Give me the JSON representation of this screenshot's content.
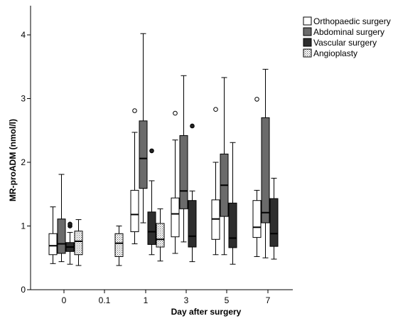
{
  "chart_data": {
    "type": "boxplot",
    "xlabel": "Day after surgery",
    "ylabel": "MR-proADM (nmol/l)",
    "ylim": [
      0,
      4.4
    ],
    "yticks": [
      0,
      1,
      2,
      3,
      4
    ],
    "categories": [
      "0",
      "0.1",
      "1",
      "3",
      "5",
      "7"
    ],
    "legend_position": "top-right",
    "series": [
      {
        "name": "Orthopaedic surgery",
        "fill": "#ffffff",
        "pattern": "none",
        "boxes": [
          {
            "category": "0",
            "whisker_low": 0.41,
            "q1": 0.55,
            "median": 0.69,
            "q3": 0.88,
            "whisker_high": 1.3,
            "outliers": []
          },
          {
            "category": "1",
            "whisker_low": 0.72,
            "q1": 0.91,
            "median": 1.18,
            "q3": 1.56,
            "whisker_high": 2.47,
            "outliers": [
              2.81
            ]
          },
          {
            "category": "3",
            "whisker_low": 0.57,
            "q1": 0.83,
            "median": 1.19,
            "q3": 1.44,
            "whisker_high": 2.35,
            "outliers": [
              2.77
            ]
          },
          {
            "category": "5",
            "whisker_low": 0.55,
            "q1": 0.79,
            "median": 1.11,
            "q3": 1.41,
            "whisker_high": 2.0,
            "outliers": [
              2.83
            ]
          },
          {
            "category": "7",
            "whisker_low": 0.52,
            "q1": 0.82,
            "median": 0.98,
            "q3": 1.4,
            "whisker_high": 1.56,
            "outliers": [
              2.99
            ]
          }
        ]
      },
      {
        "name": "Abdominal surgery",
        "fill": "#6b6b6b",
        "pattern": "none",
        "boxes": [
          {
            "category": "0",
            "whisker_low": 0.44,
            "q1": 0.57,
            "median": 0.72,
            "q3": 1.11,
            "whisker_high": 1.81,
            "outliers": []
          },
          {
            "category": "1",
            "whisker_low": 1.05,
            "q1": 1.59,
            "median": 2.06,
            "q3": 2.65,
            "whisker_high": 4.02,
            "outliers": []
          },
          {
            "category": "3",
            "whisker_low": 0.75,
            "q1": 1.27,
            "median": 1.55,
            "q3": 2.42,
            "whisker_high": 3.36,
            "outliers": []
          },
          {
            "category": "5",
            "whisker_low": 0.55,
            "q1": 1.15,
            "median": 1.64,
            "q3": 2.13,
            "whisker_high": 3.33,
            "outliers": []
          },
          {
            "category": "7",
            "whisker_low": 0.5,
            "q1": 1.05,
            "median": 1.21,
            "q3": 2.7,
            "whisker_high": 3.46,
            "outliers": []
          }
        ]
      },
      {
        "name": "Vascular surgery",
        "fill": "#2e2e2e",
        "pattern": "none",
        "boxes": [
          {
            "category": "0",
            "whisker_low": 0.4,
            "q1": 0.6,
            "median": 0.67,
            "q3": 0.74,
            "whisker_high": 0.9,
            "outliers": [
              1.0,
              1.03
            ]
          },
          {
            "category": "1",
            "whisker_low": 0.55,
            "q1": 0.71,
            "median": 0.91,
            "q3": 1.22,
            "whisker_high": 1.71,
            "outliers": [
              2.18
            ]
          },
          {
            "category": "3",
            "whisker_low": 0.44,
            "q1": 0.67,
            "median": 0.84,
            "q3": 1.4,
            "whisker_high": 1.55,
            "outliers": [
              2.57
            ]
          },
          {
            "category": "5",
            "whisker_low": 0.4,
            "q1": 0.66,
            "median": 0.81,
            "q3": 1.36,
            "whisker_high": 2.31,
            "outliers": []
          },
          {
            "category": "7",
            "whisker_low": 0.48,
            "q1": 0.68,
            "median": 0.88,
            "q3": 1.43,
            "whisker_high": 1.75,
            "outliers": []
          }
        ]
      },
      {
        "name": "Angioplasty",
        "fill": "#ffffff",
        "pattern": "dots",
        "boxes": [
          {
            "category": "0",
            "whisker_low": 0.38,
            "q1": 0.55,
            "median": 0.76,
            "q3": 0.92,
            "whisker_high": 1.1,
            "outliers": []
          },
          {
            "category": "0.1",
            "whisker_low": 0.38,
            "q1": 0.52,
            "median": 0.73,
            "q3": 0.88,
            "whisker_high": 1.0,
            "outliers": []
          },
          {
            "category": "1",
            "whisker_low": 0.45,
            "q1": 0.67,
            "median": 0.79,
            "q3": 1.04,
            "whisker_high": 1.27,
            "outliers": []
          }
        ]
      }
    ]
  }
}
